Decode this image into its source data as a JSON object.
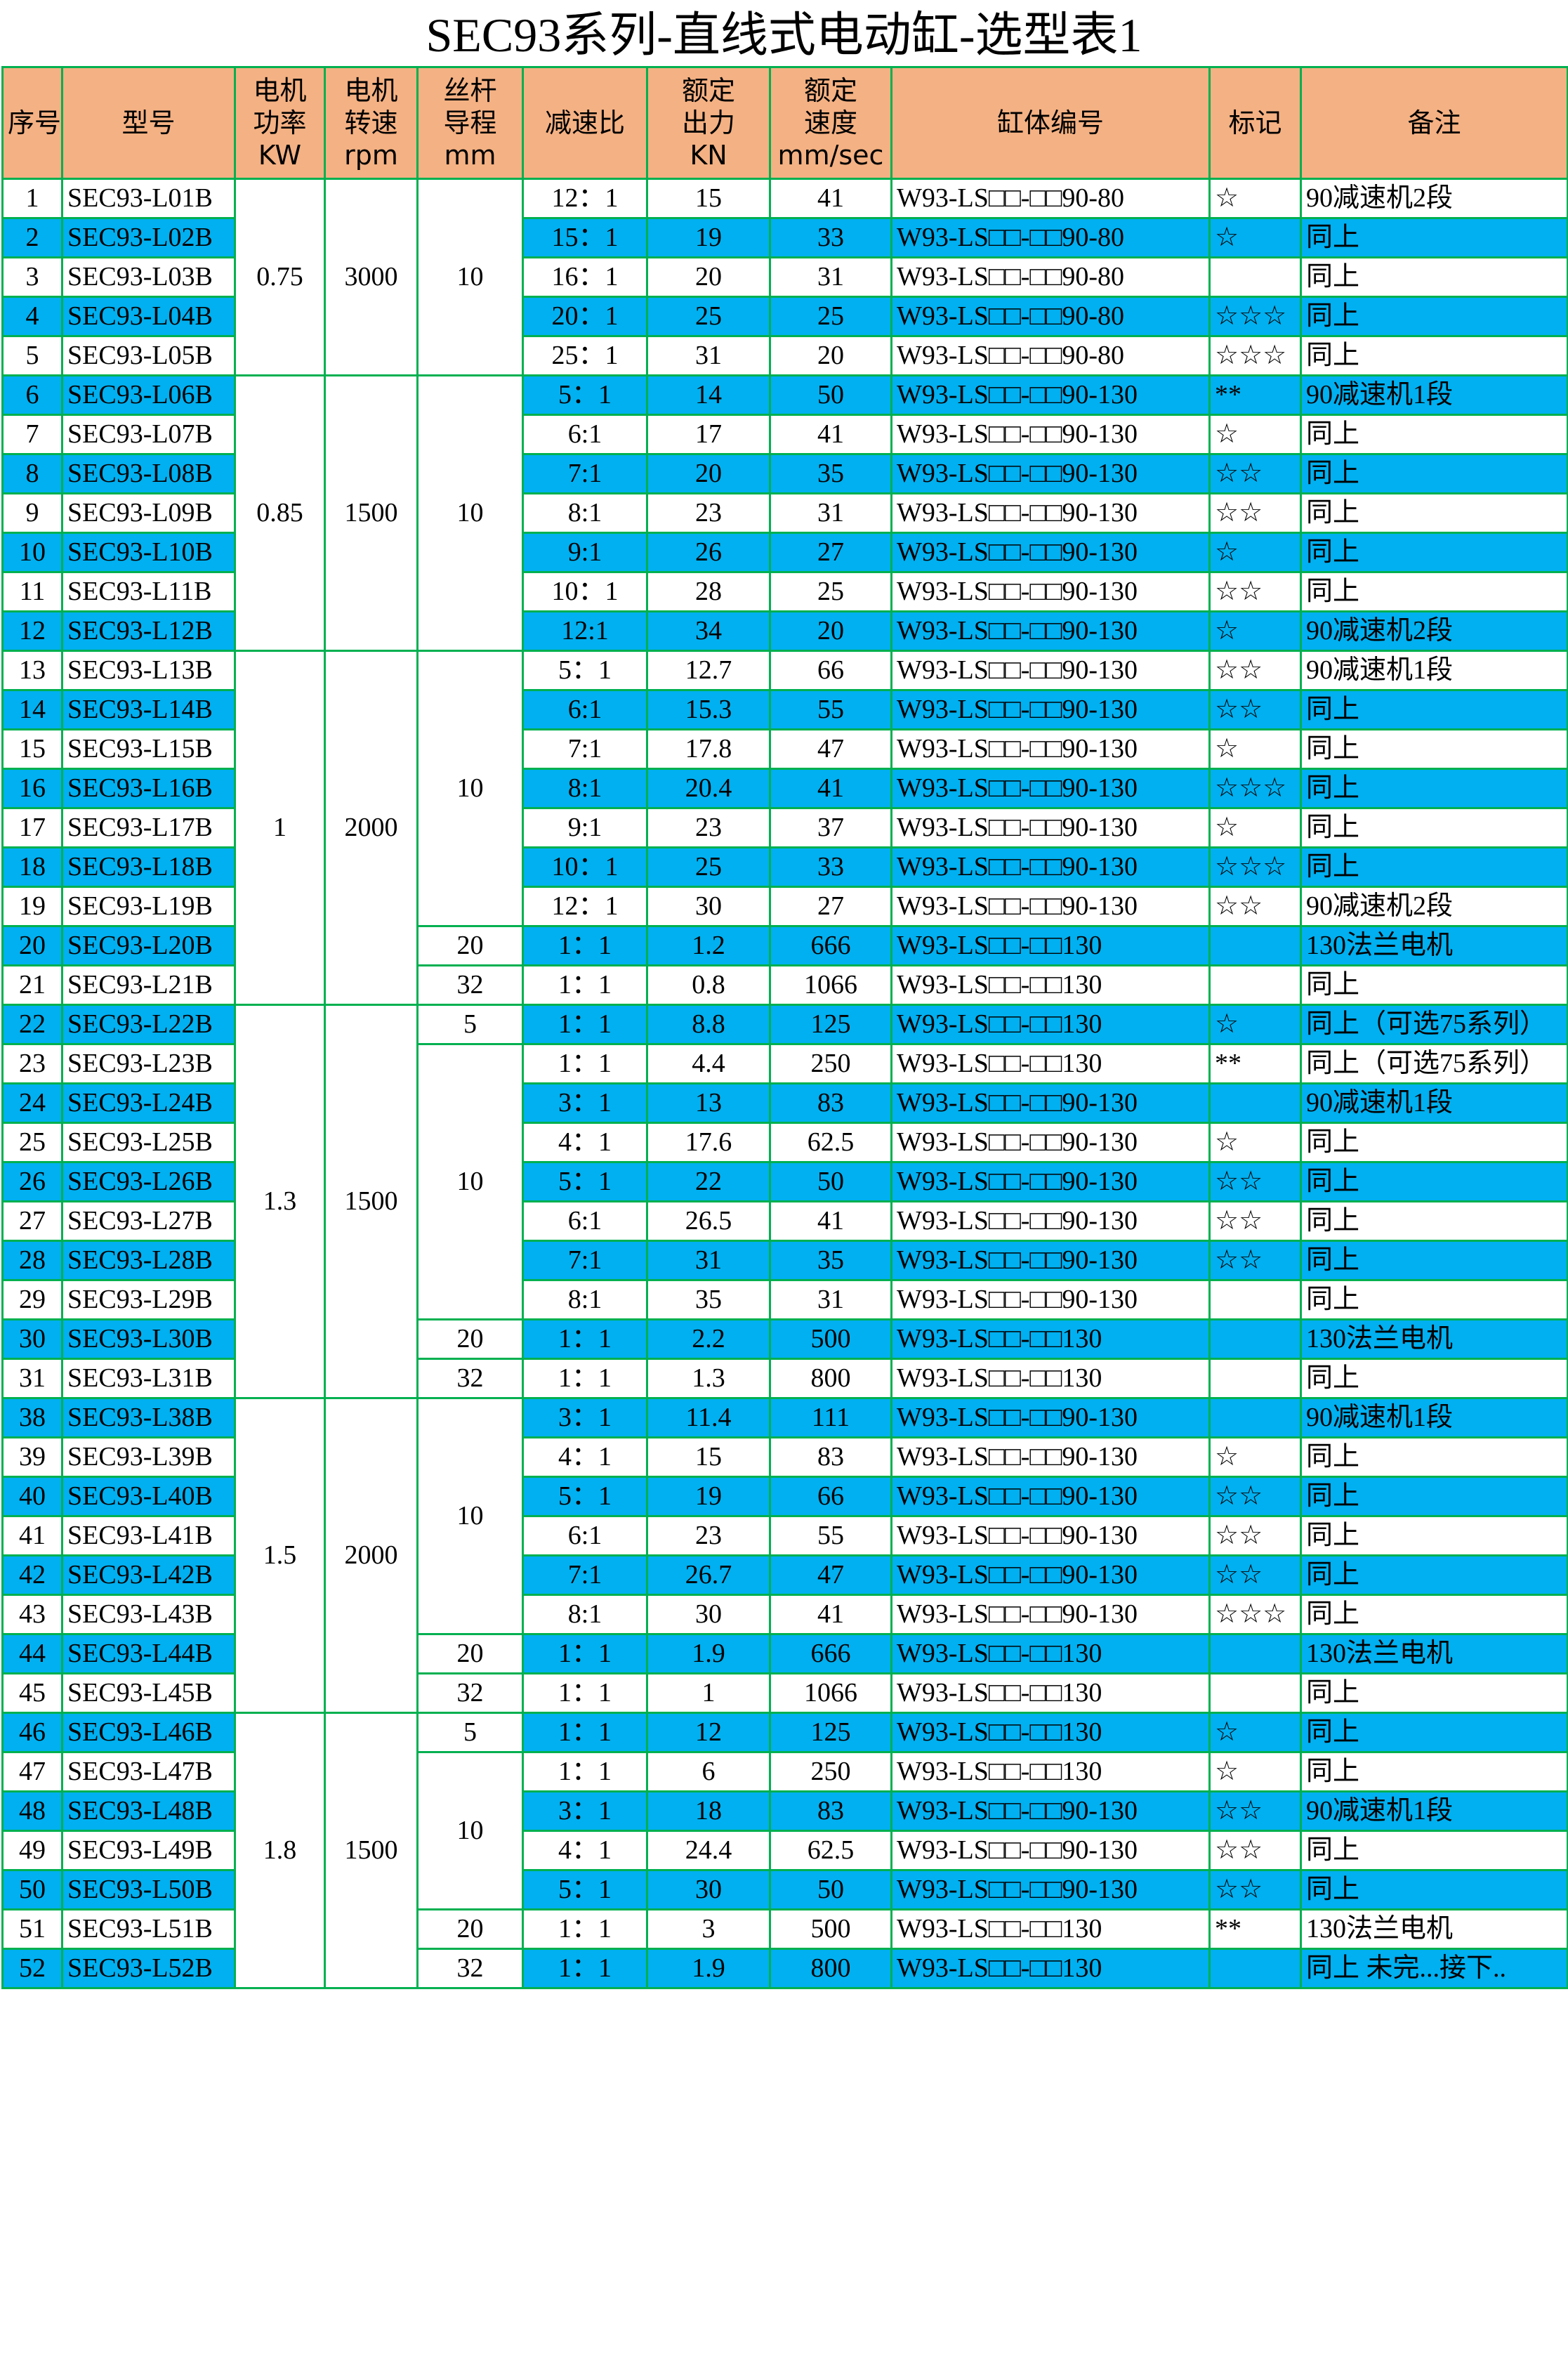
{
  "title": "SEC93系列-直线式电动缸-选型表1",
  "columns": [
    [
      "序号"
    ],
    [
      "型号"
    ],
    [
      "电机",
      "功率",
      "KW"
    ],
    [
      "电机",
      "转速",
      "rpm"
    ],
    [
      "丝杆",
      "导程",
      "mm"
    ],
    [
      "减速比"
    ],
    [
      "额定",
      "出力",
      "KN"
    ],
    [
      "额定",
      "速度",
      "mm/sec"
    ],
    [
      "缸体编号"
    ],
    [
      "标记"
    ],
    [
      "备注"
    ]
  ],
  "rows": [
    [
      "1",
      "SEC93-L01B",
      "0.75",
      "3000",
      "10",
      "12：1",
      "15",
      "41",
      "W93-LS□□-□□90-80",
      "☆",
      "90减速机2段"
    ],
    [
      "2",
      "SEC93-L02B",
      null,
      null,
      null,
      "15：1",
      "19",
      "33",
      "W93-LS□□-□□90-80",
      "☆",
      "同上"
    ],
    [
      "3",
      "SEC93-L03B",
      null,
      null,
      null,
      "16：1",
      "20",
      "31",
      "W93-LS□□-□□90-80",
      null,
      "同上"
    ],
    [
      "4",
      "SEC93-L04B",
      null,
      null,
      null,
      "20：1",
      "25",
      "25",
      "W93-LS□□-□□90-80",
      "☆☆☆",
      "同上"
    ],
    [
      "5",
      "SEC93-L05B",
      null,
      null,
      null,
      "25：1",
      "31",
      "20",
      "W93-LS□□-□□90-80",
      "☆☆☆",
      "同上"
    ],
    [
      "6",
      "SEC93-L06B",
      "0.85",
      "1500",
      "10",
      "5：1",
      "14",
      "50",
      "W93-LS□□-□□90-130",
      "**",
      "90减速机1段"
    ],
    [
      "7",
      "SEC93-L07B",
      null,
      null,
      null,
      "6:1",
      "17",
      "41",
      "W93-LS□□-□□90-130",
      "☆",
      "同上"
    ],
    [
      "8",
      "SEC93-L08B",
      null,
      null,
      null,
      "7:1",
      "20",
      "35",
      "W93-LS□□-□□90-130",
      "☆☆",
      "同上"
    ],
    [
      "9",
      "SEC93-L09B",
      null,
      null,
      null,
      "8:1",
      "23",
      "31",
      "W93-LS□□-□□90-130",
      "☆☆",
      "同上"
    ],
    [
      "10",
      "SEC93-L10B",
      null,
      null,
      null,
      "9:1",
      "26",
      "27",
      "W93-LS□□-□□90-130",
      "☆",
      "同上"
    ],
    [
      "11",
      "SEC93-L11B",
      null,
      null,
      null,
      "10：1",
      "28",
      "25",
      "W93-LS□□-□□90-130",
      "☆☆",
      "同上"
    ],
    [
      "12",
      "SEC93-L12B",
      null,
      null,
      null,
      "12:1",
      "34",
      "20",
      "W93-LS□□-□□90-130",
      "☆",
      "90减速机2段"
    ],
    [
      "13",
      "SEC93-L13B",
      "1",
      "2000",
      "10",
      "5：1",
      "12.7",
      "66",
      "W93-LS□□-□□90-130",
      "☆☆",
      "90减速机1段"
    ],
    [
      "14",
      "SEC93-L14B",
      null,
      null,
      null,
      "6:1",
      "15.3",
      "55",
      "W93-LS□□-□□90-130",
      "☆☆",
      "同上"
    ],
    [
      "15",
      "SEC93-L15B",
      null,
      null,
      null,
      "7:1",
      "17.8",
      "47",
      "W93-LS□□-□□90-130",
      "☆",
      "同上"
    ],
    [
      "16",
      "SEC93-L16B",
      null,
      null,
      null,
      "8:1",
      "20.4",
      "41",
      "W93-LS□□-□□90-130",
      "☆☆☆",
      "同上"
    ],
    [
      "17",
      "SEC93-L17B",
      null,
      null,
      null,
      "9:1",
      "23",
      "37",
      "W93-LS□□-□□90-130",
      "☆",
      "同上"
    ],
    [
      "18",
      "SEC93-L18B",
      null,
      null,
      null,
      "10：1",
      "25",
      "33",
      "W93-LS□□-□□90-130",
      "☆☆☆",
      "同上"
    ],
    [
      "19",
      "SEC93-L19B",
      null,
      null,
      null,
      "12：1",
      "30",
      "27",
      "W93-LS□□-□□90-130",
      "☆☆",
      "90减速机2段"
    ],
    [
      "20",
      "SEC93-L20B",
      null,
      null,
      "20",
      "1：1",
      "1.2",
      "666",
      "W93-LS□□-□□130",
      null,
      "130法兰电机"
    ],
    [
      "21",
      "SEC93-L21B",
      null,
      null,
      "32",
      "1：1",
      "0.8",
      "1066",
      "W93-LS□□-□□130",
      null,
      "同上"
    ],
    [
      "22",
      "SEC93-L22B",
      "1.3",
      "1500",
      "5",
      "1：1",
      "8.8",
      "125",
      "W93-LS□□-□□130",
      "☆",
      "同上（可选75系列）"
    ],
    [
      "23",
      "SEC93-L23B",
      null,
      null,
      "10",
      "1：1",
      "4.4",
      "250",
      "W93-LS□□-□□130",
      "**",
      "同上（可选75系列）"
    ],
    [
      "24",
      "SEC93-L24B",
      null,
      null,
      null,
      "3：1",
      "13",
      "83",
      "W93-LS□□-□□90-130",
      null,
      "90减速机1段"
    ],
    [
      "25",
      "SEC93-L25B",
      null,
      null,
      null,
      "4：1",
      "17.6",
      "62.5",
      "W93-LS□□-□□90-130",
      "☆",
      "同上"
    ],
    [
      "26",
      "SEC93-L26B",
      null,
      null,
      null,
      "5：1",
      "22",
      "50",
      "W93-LS□□-□□90-130",
      "☆☆",
      "同上"
    ],
    [
      "27",
      "SEC93-L27B",
      null,
      null,
      null,
      "6:1",
      "26.5",
      "41",
      "W93-LS□□-□□90-130",
      "☆☆",
      "同上"
    ],
    [
      "28",
      "SEC93-L28B",
      null,
      null,
      null,
      "7:1",
      "31",
      "35",
      "W93-LS□□-□□90-130",
      "☆☆",
      "同上"
    ],
    [
      "29",
      "SEC93-L29B",
      null,
      null,
      null,
      "8:1",
      "35",
      "31",
      "W93-LS□□-□□90-130",
      null,
      "同上"
    ],
    [
      "30",
      "SEC93-L30B",
      null,
      null,
      "20",
      "1：1",
      "2.2",
      "500",
      "W93-LS□□-□□130",
      null,
      "130法兰电机"
    ],
    [
      "31",
      "SEC93-L31B",
      null,
      null,
      "32",
      "1：1",
      "1.3",
      "800",
      "W93-LS□□-□□130",
      null,
      "同上"
    ],
    [
      "38",
      "SEC93-L38B",
      "1.5",
      "2000",
      "10",
      "3：1",
      "11.4",
      "111",
      "W93-LS□□-□□90-130",
      null,
      "90减速机1段"
    ],
    [
      "39",
      "SEC93-L39B",
      null,
      null,
      null,
      "4：1",
      "15",
      "83",
      "W93-LS□□-□□90-130",
      "☆",
      "同上"
    ],
    [
      "40",
      "SEC93-L40B",
      null,
      null,
      null,
      "5：1",
      "19",
      "66",
      "W93-LS□□-□□90-130",
      "☆☆",
      "同上"
    ],
    [
      "41",
      "SEC93-L41B",
      null,
      null,
      null,
      "6:1",
      "23",
      "55",
      "W93-LS□□-□□90-130",
      "☆☆",
      "同上"
    ],
    [
      "42",
      "SEC93-L42B",
      null,
      null,
      null,
      "7:1",
      "26.7",
      "47",
      "W93-LS□□-□□90-130",
      "☆☆",
      "同上"
    ],
    [
      "43",
      "SEC93-L43B",
      null,
      null,
      null,
      "8:1",
      "30",
      "41",
      "W93-LS□□-□□90-130",
      "☆☆☆",
      "同上"
    ],
    [
      "44",
      "SEC93-L44B",
      null,
      null,
      "20",
      "1：1",
      "1.9",
      "666",
      "W93-LS□□-□□130",
      null,
      "130法兰电机"
    ],
    [
      "45",
      "SEC93-L45B",
      null,
      null,
      "32",
      "1：1",
      "1",
      "1066",
      "W93-LS□□-□□130",
      null,
      "同上"
    ],
    [
      "46",
      "SEC93-L46B",
      "1.8",
      "1500",
      "5",
      "1：1",
      "12",
      "125",
      "W93-LS□□-□□130",
      "☆",
      "同上"
    ],
    [
      "47",
      "SEC93-L47B",
      null,
      null,
      "10",
      "1：1",
      "6",
      "250",
      "W93-LS□□-□□130",
      "☆",
      "同上"
    ],
    [
      "48",
      "SEC93-L48B",
      null,
      null,
      null,
      "3：1",
      "18",
      "83",
      "W93-LS□□-□□90-130",
      "☆☆",
      "90减速机1段"
    ],
    [
      "49",
      "SEC93-L49B",
      null,
      null,
      null,
      "4：1",
      "24.4",
      "62.5",
      "W93-LS□□-□□90-130",
      "☆☆",
      "同上"
    ],
    [
      "50",
      "SEC93-L50B",
      null,
      null,
      null,
      "5：1",
      "30",
      "50",
      "W93-LS□□-□□90-130",
      "☆☆",
      "同上"
    ],
    [
      "51",
      "SEC93-L51B",
      null,
      null,
      "20",
      "1：1",
      "3",
      "500",
      "W93-LS□□-□□130",
      "**",
      "130法兰电机"
    ],
    [
      "52",
      "SEC93-L52B",
      null,
      null,
      "32",
      "1：1",
      "1.9",
      "800",
      "W93-LS□□-□□130",
      null,
      "同上 未完...接下.."
    ]
  ]
}
